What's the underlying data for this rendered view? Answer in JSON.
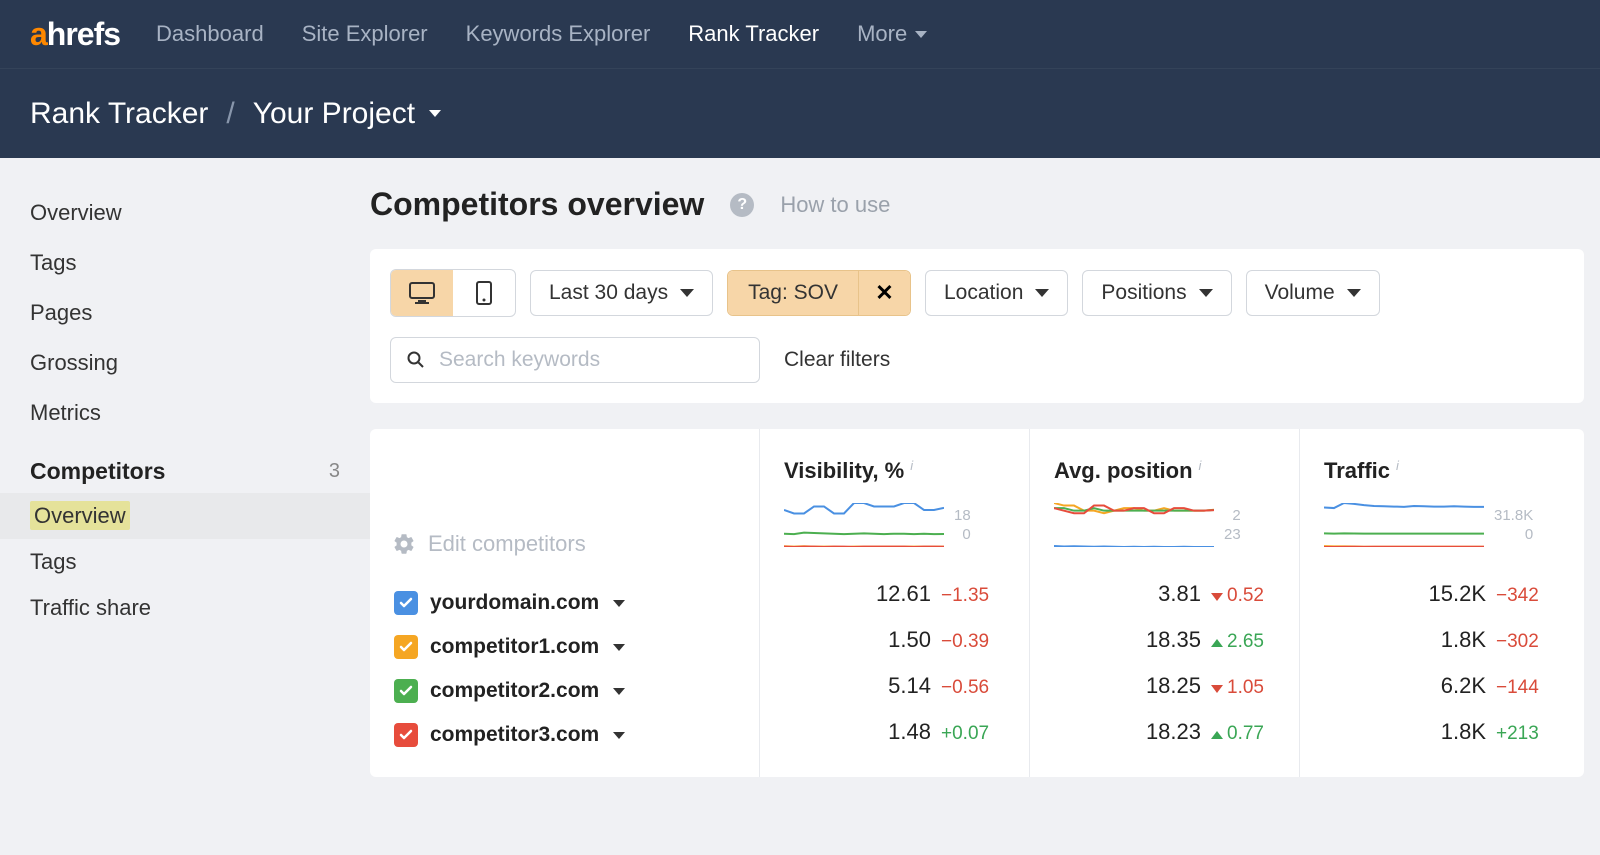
{
  "colors": {
    "header_bg": "#2a3951",
    "accent_orange": "#ff8800",
    "tag_bg": "#f7d6a8",
    "highlight": "#e5e29a",
    "blue": "#4a90e2",
    "orange": "#f5a623",
    "green": "#4caf50",
    "red": "#e74c3c",
    "delta_neg": "#d94b3a",
    "delta_pos": "#3aa655"
  },
  "header": {
    "logo_a": "a",
    "logo_rest": "hrefs",
    "nav": [
      "Dashboard",
      "Site Explorer",
      "Keywords Explorer",
      "Rank Tracker",
      "More"
    ],
    "active_nav": "Rank Tracker"
  },
  "breadcrumb": {
    "root": "Rank Tracker",
    "project": "Your Project"
  },
  "sidebar": {
    "items": [
      "Overview",
      "Tags",
      "Pages",
      "Grossing",
      "Metrics"
    ],
    "section": {
      "label": "Competitors",
      "count": "3"
    },
    "sub": [
      "Overview",
      "Tags",
      "Traffic share"
    ],
    "selected_sub": "Overview"
  },
  "page": {
    "title": "Competitors overview",
    "how_to": "How to use"
  },
  "filters": {
    "date_range": "Last 30 days",
    "tag": "Tag: SOV",
    "location": "Location",
    "positions": "Positions",
    "volume": "Volume",
    "search_placeholder": "Search keywords",
    "clear": "Clear filters"
  },
  "columns": {
    "edit": "Edit competitors",
    "visibility": {
      "label": "Visibility, %",
      "max": "18",
      "min": "0"
    },
    "avg_position": {
      "label": "Avg. position",
      "max": "2",
      "min": "23"
    },
    "traffic": {
      "label": "Traffic",
      "max": "31.8K",
      "min": "0"
    }
  },
  "sparklines": {
    "visibility": [
      {
        "color": "#4a90e2",
        "points": [
          12,
          11,
          11,
          13,
          13,
          11,
          11,
          14,
          14,
          13,
          13,
          13,
          14,
          14,
          12,
          12,
          12.6
        ]
      },
      {
        "color": "#4caf50",
        "points": [
          5.2,
          5.1,
          5.5,
          5.4,
          5.3,
          5.2,
          5.1,
          5.2,
          5.3,
          5.2,
          5.1,
          5.2,
          5.2,
          5.1,
          5.2,
          5.1,
          5.14
        ]
      },
      {
        "color": "#f5a623",
        "points": [
          1.6,
          1.5,
          1.6,
          1.5,
          1.5,
          1.5,
          1.4,
          1.5,
          1.5,
          1.5,
          1.5,
          1.5,
          1.5,
          1.5,
          1.5,
          1.5,
          1.5
        ]
      },
      {
        "color": "#e74c3c",
        "points": [
          1.5,
          1.4,
          1.5,
          1.5,
          1.4,
          1.5,
          1.5,
          1.4,
          1.5,
          1.5,
          1.5,
          1.5,
          1.5,
          1.4,
          1.5,
          1.5,
          1.48
        ]
      }
    ],
    "avg_position": [
      {
        "color": "#4a90e2",
        "points": [
          4.2,
          4.0,
          4.1,
          4.0,
          3.9,
          4.0,
          3.9,
          3.8,
          3.9,
          3.8,
          3.9,
          3.8,
          3.8,
          3.9,
          3.8,
          3.8,
          3.81
        ]
      },
      {
        "color": "#f5a623",
        "points": [
          21,
          20,
          20,
          18,
          18,
          17,
          18,
          19,
          19,
          18,
          18,
          19,
          18,
          18,
          18,
          18,
          18.35
        ]
      },
      {
        "color": "#4caf50",
        "points": [
          19,
          19,
          18,
          18,
          19,
          18,
          18,
          18,
          18,
          18,
          18,
          18,
          18,
          18,
          18,
          18,
          18.25
        ]
      },
      {
        "color": "#e74c3c",
        "points": [
          19,
          18,
          17,
          17,
          20,
          20,
          18,
          18,
          19,
          19,
          17,
          17,
          19,
          19,
          18,
          18,
          18.23
        ]
      }
    ],
    "traffic": [
      {
        "color": "#4a90e2",
        "points": [
          15000,
          14800,
          16500,
          16200,
          15800,
          15500,
          15400,
          15300,
          15200,
          15500,
          15400,
          15300,
          15300,
          15400,
          15300,
          15200,
          15200
        ]
      },
      {
        "color": "#4caf50",
        "points": [
          6300,
          6200,
          6300,
          6250,
          6200,
          6200,
          6200,
          6200,
          6200,
          6200,
          6200,
          6200,
          6200,
          6200,
          6200,
          6200,
          6200
        ]
      },
      {
        "color": "#f5a623",
        "points": [
          2000,
          1900,
          1900,
          1850,
          1800,
          1800,
          1800,
          1800,
          1800,
          1800,
          1800,
          1800,
          1800,
          1800,
          1800,
          1800,
          1800
        ]
      },
      {
        "color": "#e74c3c",
        "points": [
          1700,
          1700,
          1750,
          1800,
          1750,
          1800,
          1800,
          1800,
          1800,
          1800,
          1800,
          1800,
          1800,
          1800,
          1800,
          1800,
          1800
        ]
      }
    ]
  },
  "domains": [
    {
      "name": "yourdomain.com",
      "color": "#4a90e2",
      "visibility": {
        "val": "12.61",
        "delta": "−1.35",
        "dir": "neg"
      },
      "avg": {
        "val": "3.81",
        "delta": "0.52",
        "dir": "neg",
        "arrow": "down"
      },
      "traffic": {
        "val": "15.2K",
        "delta": "−342",
        "dir": "neg"
      }
    },
    {
      "name": "competitor1.com",
      "color": "#f5a623",
      "visibility": {
        "val": "1.50",
        "delta": "−0.39",
        "dir": "neg"
      },
      "avg": {
        "val": "18.35",
        "delta": "2.65",
        "dir": "pos",
        "arrow": "up"
      },
      "traffic": {
        "val": "1.8K",
        "delta": "−302",
        "dir": "neg"
      }
    },
    {
      "name": "competitor2.com",
      "color": "#4caf50",
      "visibility": {
        "val": "5.14",
        "delta": "−0.56",
        "dir": "neg"
      },
      "avg": {
        "val": "18.25",
        "delta": "1.05",
        "dir": "neg",
        "arrow": "down"
      },
      "traffic": {
        "val": "6.2K",
        "delta": "−144",
        "dir": "neg"
      }
    },
    {
      "name": "competitor3.com",
      "color": "#e74c3c",
      "visibility": {
        "val": "1.48",
        "delta": "+0.07",
        "dir": "pos"
      },
      "avg": {
        "val": "18.23",
        "delta": "0.77",
        "dir": "pos",
        "arrow": "up"
      },
      "traffic": {
        "val": "1.8K",
        "delta": "+213",
        "dir": "pos"
      }
    }
  ]
}
